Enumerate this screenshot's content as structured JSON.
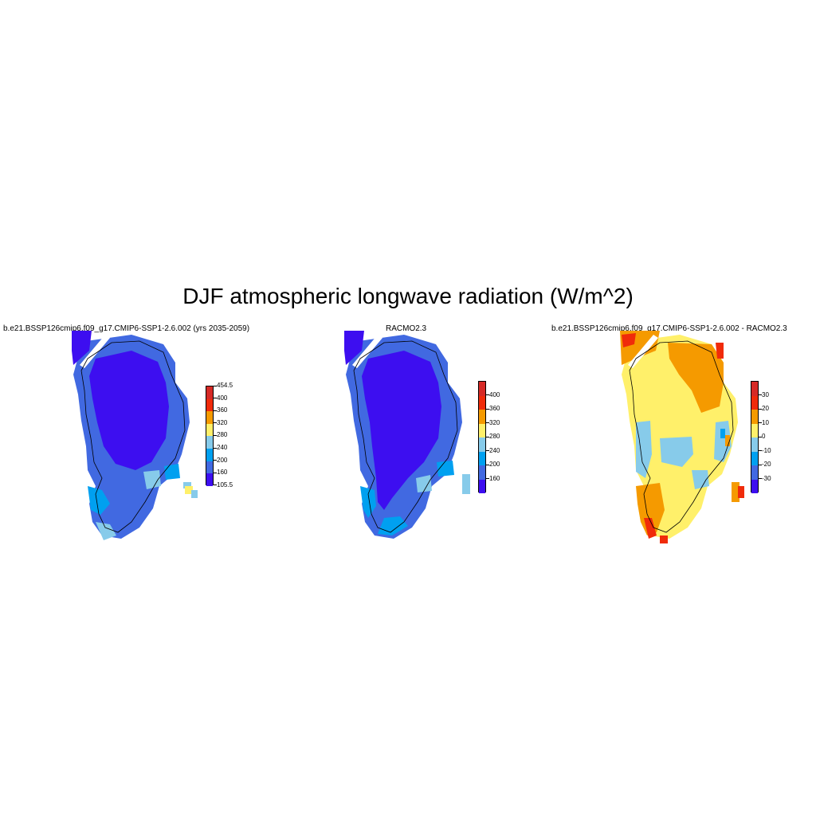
{
  "title": "DJF atmospheric longwave radiation (W/m^2)",
  "panels": [
    {
      "title": "b.e21.BSSP126cmip6.f09_g17.CMIP6-SSP1-2.6.002 (yrs 2035-2059)",
      "colorbar": {
        "colors": [
          "#3d0ef0",
          "#4169e1",
          "#00a0f0",
          "#87cbea",
          "#fff06a",
          "#f59a00",
          "#f02b0a",
          "#d62a26"
        ],
        "labels": [
          "105.5",
          "160",
          "200",
          "240",
          "280",
          "320",
          "360",
          "400",
          "454.5"
        ]
      }
    },
    {
      "title": "RACMO2.3",
      "colorbar": {
        "colors": [
          "#3d0ef0",
          "#4169e1",
          "#00a0f0",
          "#87cbea",
          "#fff06a",
          "#f59a00",
          "#f02b0a",
          "#d62a26"
        ],
        "labels": [
          "160",
          "200",
          "240",
          "280",
          "320",
          "360",
          "400"
        ]
      }
    },
    {
      "title": "b.e21.BSSP126cmip6.f09_g17.CMIP6-SSP1-2.6.002 - RACMO2.3",
      "colorbar": {
        "colors": [
          "#3d0ef0",
          "#4169e1",
          "#00a0f0",
          "#87cbea",
          "#fff06a",
          "#f59a00",
          "#f02b0a",
          "#d62a26"
        ],
        "labels": [
          "-30",
          "-20",
          "-10",
          "0",
          "10",
          "20",
          "30"
        ]
      }
    }
  ]
}
